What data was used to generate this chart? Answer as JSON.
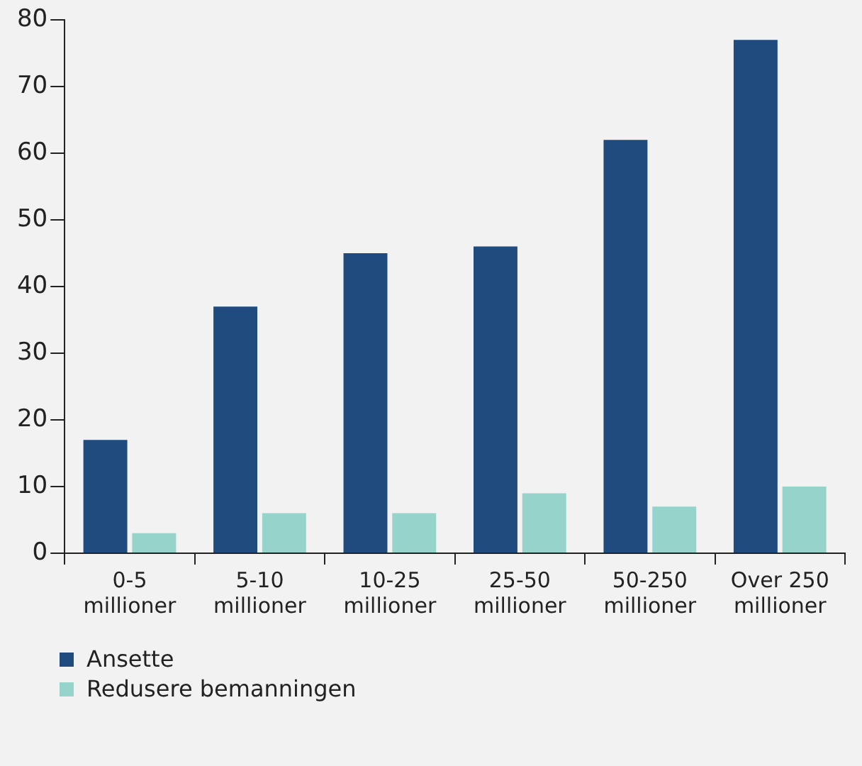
{
  "chart_data": {
    "type": "bar",
    "categories": [
      "0-5 millioner",
      "5-10 millioner",
      "10-25 millioner",
      "25-50 millioner",
      "50-250 millioner",
      "Over 250 millioner"
    ],
    "series": [
      {
        "name": "Ansette",
        "color": "#1f4b7f",
        "values": [
          17,
          37,
          45,
          46,
          62,
          77
        ]
      },
      {
        "name": "Redusere bemanningen",
        "color": "#96d3cb",
        "values": [
          3,
          6,
          6,
          9,
          7,
          10
        ]
      }
    ],
    "ylim": [
      0,
      80
    ],
    "yticks": [
      0,
      10,
      20,
      30,
      40,
      50,
      60,
      70,
      80
    ],
    "grid": false,
    "legend": "bottom left"
  }
}
